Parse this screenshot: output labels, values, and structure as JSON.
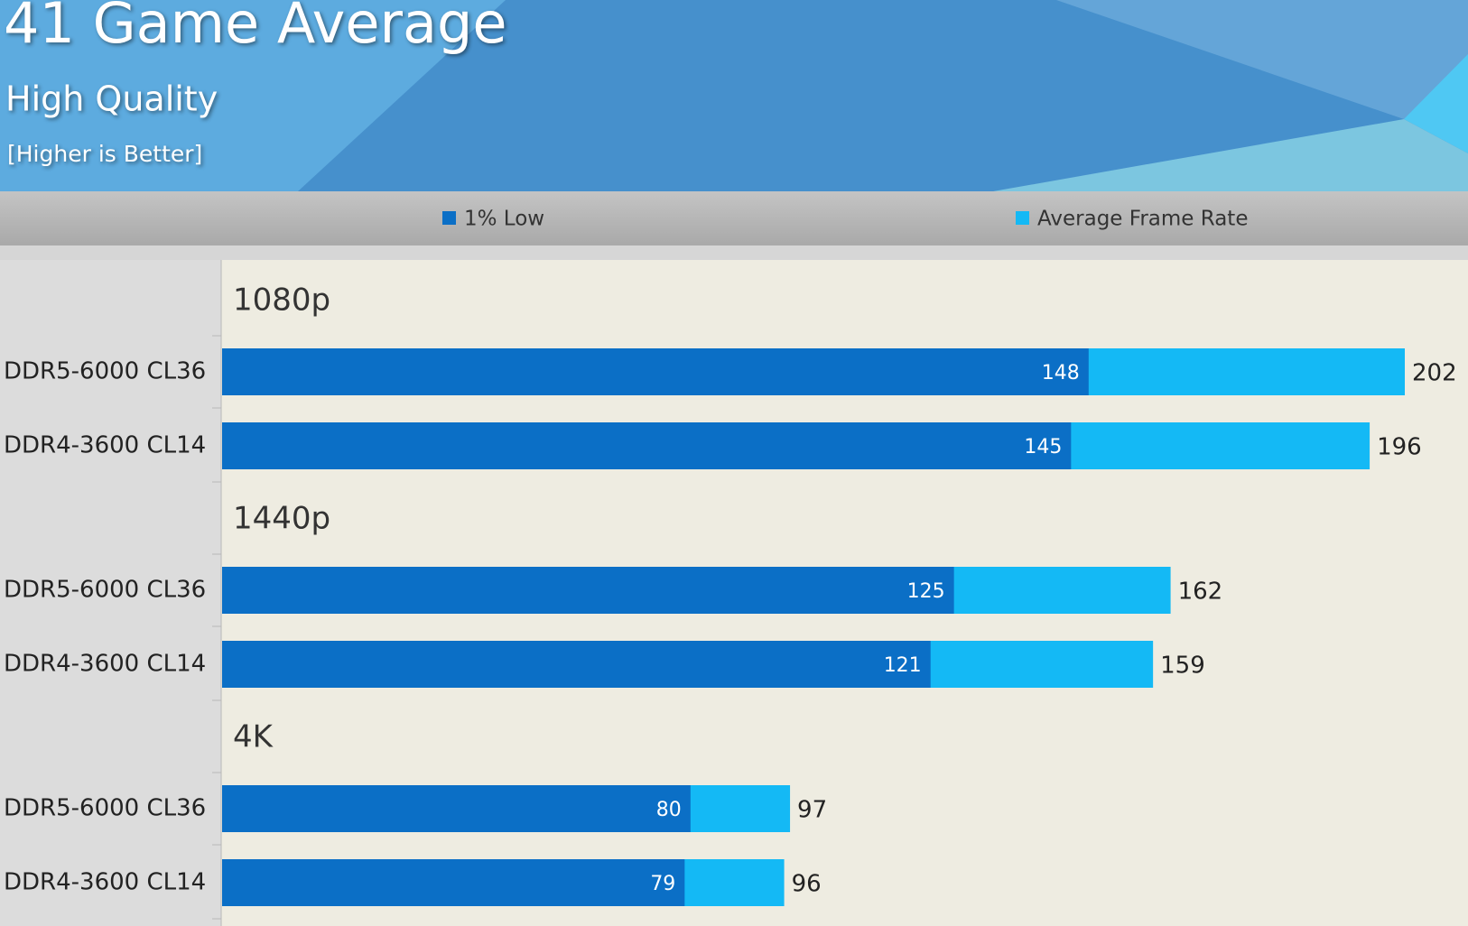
{
  "chart_data": {
    "type": "bar",
    "title": "41 Game Average",
    "subtitle": "High Quality",
    "note": "[Higher is Better]",
    "groups": [
      {
        "name": "1080p",
        "categories": [
          "DDR5-6000 CL36",
          "DDR4-3600 CL14"
        ]
      },
      {
        "name": "1440p",
        "categories": [
          "DDR5-6000 CL36",
          "DDR4-3600 CL14"
        ]
      },
      {
        "name": "4K",
        "categories": [
          "DDR5-6000 CL36",
          "DDR4-3600 CL14"
        ]
      }
    ],
    "series": [
      {
        "name": "1% Low",
        "color": "#0b6fc6",
        "values": [
          148,
          145,
          125,
          121,
          80,
          79
        ]
      },
      {
        "name": "Average Frame Rate",
        "color": "#14b9f5",
        "values": [
          202,
          196,
          162,
          159,
          97,
          96
        ]
      }
    ]
  }
}
